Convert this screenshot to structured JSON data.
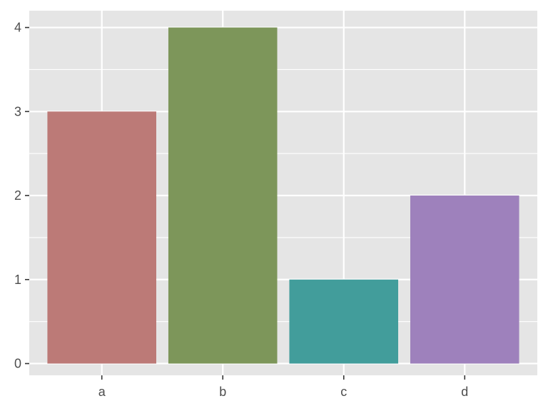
{
  "chart_data": {
    "type": "bar",
    "title": "",
    "xlabel": "",
    "ylabel": "",
    "categories": [
      "a",
      "b",
      "c",
      "d"
    ],
    "values": [
      3,
      4,
      1,
      2
    ],
    "colors": [
      "#BC7A77",
      "#7D965A",
      "#429D9B",
      "#9E81BC"
    ],
    "ylim": [
      -0.14,
      4.2
    ],
    "yticks": [
      0,
      1,
      2,
      3,
      4
    ],
    "ytick_labels": [
      "0",
      "1",
      "2",
      "3",
      "4"
    ],
    "grid": true,
    "legend": "none",
    "panel_background": "#E5E5E5",
    "grid_color": "#FFFFFF",
    "tick_color": "#333333",
    "label_color": "#4D4D4D"
  }
}
